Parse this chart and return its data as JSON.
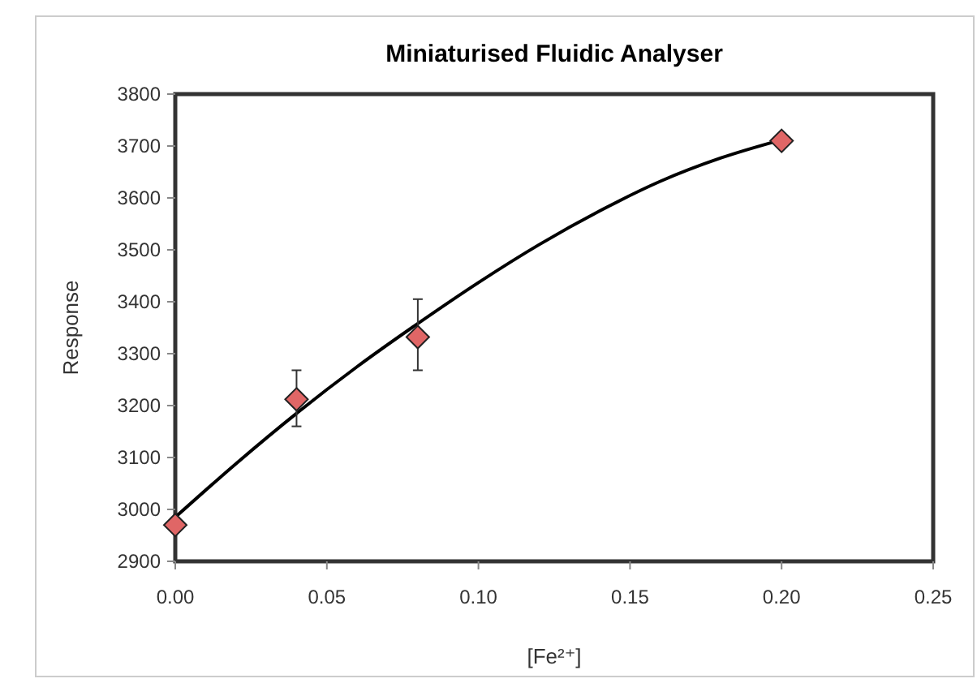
{
  "chart_data": {
    "type": "scatter",
    "title": "Miniaturised Fluidic Analyser",
    "xlabel": "[Fe²⁺]",
    "ylabel": "Response",
    "xlim": [
      0,
      0.25
    ],
    "xticks": [
      {
        "value": 0,
        "label": "0.00"
      },
      {
        "value": 0.05,
        "label": "0.05"
      },
      {
        "value": 0.1,
        "label": "0.10"
      },
      {
        "value": 0.15,
        "label": "0.15"
      },
      {
        "value": 0.2,
        "label": "0.20"
      },
      {
        "value": 0.25,
        "label": "0.25"
      }
    ],
    "ylim": [
      2900,
      3800
    ],
    "yticks": [
      2900,
      3000,
      3100,
      3200,
      3300,
      3400,
      3500,
      3600,
      3700,
      3800
    ],
    "grid": false,
    "series": [
      {
        "type": "scatter",
        "color": "#e06666",
        "marker": "diamond",
        "x": [
          0,
          0.04,
          0.08,
          0.2
        ],
        "values": [
          2970,
          3212,
          3332,
          3710
        ],
        "errors": [
          null,
          [
            3160,
            3268
          ],
          [
            3268,
            3405
          ],
          null
        ]
      },
      {
        "type": "line",
        "color": "#000000",
        "marker": "none",
        "line_style": "solid",
        "x": [
          0,
          0.02,
          0.04,
          0.06,
          0.08,
          0.1,
          0.12,
          0.14,
          0.16,
          0.18,
          0.2
        ],
        "values": [
          2985,
          3088,
          3185,
          3275,
          3358,
          3437,
          3510,
          3575,
          3632,
          3677,
          3712
        ]
      }
    ]
  }
}
